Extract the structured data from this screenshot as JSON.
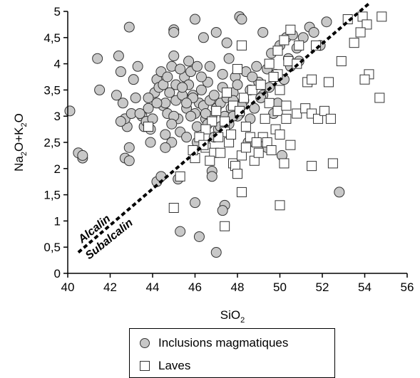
{
  "chart_data": {
    "type": "scatter",
    "title": "",
    "xlabel": "SiO",
    "xlabel_sub": "2",
    "ylabel_parts": [
      "Na",
      "2",
      "O+K",
      "2",
      "O"
    ],
    "xlim": [
      40,
      56
    ],
    "ylim": [
      0,
      5
    ],
    "x_ticks": [
      "40",
      "42",
      "44",
      "46",
      "48",
      "50",
      "52",
      "54",
      "56"
    ],
    "y_ticks": [
      "0",
      "0,5",
      "1",
      "1,5",
      "2",
      "2,5",
      "3",
      "3,5",
      "4",
      "4,5",
      "5"
    ],
    "divider_line": {
      "style": "dashed",
      "points": [
        [
          40.5,
          0.4
        ],
        [
          54.2,
          5.15
        ]
      ]
    },
    "annotations": {
      "upper": "Alcalin",
      "lower": "Subalcalin"
    },
    "legend_position": "bottom",
    "series": [
      {
        "name": "Inclusions magmatiques",
        "marker": "circle",
        "color": "#c8c8c8",
        "points": [
          [
            40.1,
            3.1
          ],
          [
            40.7,
            2.2
          ],
          [
            40.5,
            2.3
          ],
          [
            40.7,
            2.25
          ],
          [
            41.4,
            4.1
          ],
          [
            41.5,
            3.5
          ],
          [
            42.4,
            4.15
          ],
          [
            42.5,
            3.85
          ],
          [
            42.3,
            3.4
          ],
          [
            42.6,
            3.25
          ],
          [
            42.8,
            2.8
          ],
          [
            42.7,
            2.95
          ],
          [
            42.5,
            2.9
          ],
          [
            42.9,
            2.4
          ],
          [
            42.7,
            2.2
          ],
          [
            42.9,
            2.15
          ],
          [
            43.0,
            3.05
          ],
          [
            43.2,
            3.35
          ],
          [
            43.1,
            3.7
          ],
          [
            43.3,
            3.95
          ],
          [
            43.5,
            3.0
          ],
          [
            43.6,
            2.8
          ],
          [
            43.7,
            2.9
          ],
          [
            43.8,
            3.15
          ],
          [
            43.9,
            2.75
          ],
          [
            44.0,
            2.95
          ],
          [
            44.1,
            3.45
          ],
          [
            44.2,
            3.7
          ],
          [
            44.3,
            3.55
          ],
          [
            44.4,
            3.85
          ],
          [
            44.5,
            3.2
          ],
          [
            44.6,
            2.65
          ],
          [
            44.7,
            3.05
          ],
          [
            44.8,
            3.45
          ],
          [
            44.9,
            3.95
          ],
          [
            45.0,
            4.15
          ],
          [
            45.1,
            3.6
          ],
          [
            45.1,
            3.3
          ],
          [
            45.2,
            2.95
          ],
          [
            45.3,
            2.7
          ],
          [
            45.4,
            3.4
          ],
          [
            45.5,
            3.75
          ],
          [
            45.6,
            3.15
          ],
          [
            45.7,
            3.6
          ],
          [
            45.8,
            3.85
          ],
          [
            45.9,
            3.4
          ],
          [
            46.0,
            3.05
          ],
          [
            46.1,
            2.8
          ],
          [
            46.2,
            3.25
          ],
          [
            46.3,
            3.5
          ],
          [
            46.4,
            3.2
          ],
          [
            46.5,
            2.95
          ],
          [
            46.6,
            3.65
          ],
          [
            46.7,
            3.3
          ],
          [
            46.8,
            3.0
          ],
          [
            46.9,
            3.4
          ],
          [
            47.0,
            3.15
          ],
          [
            47.1,
            2.75
          ],
          [
            47.2,
            3.25
          ],
          [
            47.3,
            3.55
          ],
          [
            47.4,
            3.0
          ],
          [
            47.5,
            3.35
          ],
          [
            47.6,
            2.85
          ],
          [
            47.7,
            3.15
          ],
          [
            47.8,
            3.45
          ],
          [
            47.9,
            3.75
          ],
          [
            48.0,
            3.6
          ],
          [
            48.1,
            3.05
          ],
          [
            48.3,
            3.3
          ],
          [
            48.4,
            3.85
          ],
          [
            48.6,
            3.5
          ],
          [
            48.8,
            3.15
          ],
          [
            49.0,
            3.65
          ],
          [
            49.2,
            3.4
          ],
          [
            49.4,
            3.9
          ],
          [
            49.6,
            4.2
          ],
          [
            49.8,
            3.8
          ],
          [
            50.0,
            4.35
          ],
          [
            50.3,
            4.5
          ],
          [
            50.6,
            4.55
          ],
          [
            50.8,
            4.3
          ],
          [
            51.1,
            4.5
          ],
          [
            51.4,
            4.7
          ],
          [
            51.6,
            4.6
          ],
          [
            52.2,
            4.8
          ],
          [
            42.9,
            4.7
          ],
          [
            45.0,
            4.65
          ],
          [
            45.0,
            4.6
          ],
          [
            46.0,
            4.85
          ],
          [
            48.1,
            4.9
          ],
          [
            48.2,
            4.85
          ],
          [
            46.4,
            4.5
          ],
          [
            47.0,
            4.6
          ],
          [
            49.2,
            4.6
          ],
          [
            47.5,
            4.4
          ],
          [
            44.6,
            3.25
          ],
          [
            45.8,
            3.0
          ],
          [
            46.9,
            2.6
          ],
          [
            48.5,
            2.5
          ],
          [
            45.2,
            1.8
          ],
          [
            44.2,
            1.75
          ],
          [
            44.4,
            1.85
          ],
          [
            46.8,
            1.95
          ],
          [
            46.8,
            1.85
          ],
          [
            46.0,
            1.35
          ],
          [
            47.4,
            1.3
          ],
          [
            47.3,
            1.2
          ],
          [
            45.3,
            0.8
          ],
          [
            46.2,
            0.7
          ],
          [
            47.0,
            0.4
          ],
          [
            52.8,
            1.55
          ],
          [
            50.1,
            2.25
          ],
          [
            49.4,
            2.4
          ],
          [
            46.1,
            2.5
          ],
          [
            45.6,
            2.6
          ],
          [
            44.9,
            2.5
          ],
          [
            44.6,
            2.4
          ],
          [
            43.9,
            2.5
          ],
          [
            44.5,
            3.6
          ],
          [
            45.3,
            3.9
          ],
          [
            45.9,
            3.35
          ],
          [
            46.5,
            3.05
          ],
          [
            47.6,
            4.1
          ],
          [
            48.9,
            3.95
          ],
          [
            49.5,
            3.55
          ],
          [
            50.2,
            3.7
          ],
          [
            50.9,
            4.05
          ],
          [
            44.7,
            3.75
          ],
          [
            45.6,
            3.25
          ],
          [
            46.3,
            3.75
          ],
          [
            47.2,
            2.8
          ],
          [
            48.0,
            3.0
          ],
          [
            48.7,
            3.75
          ],
          [
            49.9,
            3.25
          ],
          [
            43.4,
            3.05
          ],
          [
            44.2,
            3.25
          ],
          [
            45.0,
            3.0
          ],
          [
            46.6,
            2.85
          ],
          [
            47.8,
            3.3
          ],
          [
            49.1,
            3.35
          ],
          [
            50.5,
            3.95
          ],
          [
            51.9,
            4.35
          ],
          [
            43.8,
            3.35
          ],
          [
            45.4,
            3.55
          ],
          [
            46.1,
            3.95
          ],
          [
            47.3,
            3.8
          ],
          [
            48.2,
            3.2
          ],
          [
            49.7,
            3.05
          ],
          [
            44.9,
            2.85
          ],
          [
            46.7,
            3.95
          ],
          [
            48.6,
            2.95
          ],
          [
            50.4,
            4.1
          ],
          [
            45.7,
            4.05
          ],
          [
            47.8,
            3.0
          ]
        ]
      },
      {
        "name": "Laves",
        "marker": "square",
        "color": "#ffffff",
        "points": [
          [
            43.8,
            2.8
          ],
          [
            45.3,
            1.85
          ],
          [
            45.0,
            1.25
          ],
          [
            46.5,
            2.4
          ],
          [
            46.9,
            2.3
          ],
          [
            46.0,
            2.2
          ],
          [
            47.4,
            2.7
          ],
          [
            47.6,
            2.5
          ],
          [
            47.8,
            2.1
          ],
          [
            47.9,
            2.05
          ],
          [
            48.0,
            1.9
          ],
          [
            48.2,
            2.25
          ],
          [
            48.4,
            2.4
          ],
          [
            48.6,
            2.6
          ],
          [
            48.8,
            2.15
          ],
          [
            49.0,
            2.3
          ],
          [
            49.2,
            2.6
          ],
          [
            49.4,
            2.5
          ],
          [
            49.6,
            2.35
          ],
          [
            49.8,
            2.75
          ],
          [
            50.0,
            2.65
          ],
          [
            50.2,
            2.1
          ],
          [
            50.5,
            2.45
          ],
          [
            50.8,
            3.05
          ],
          [
            51.2,
            3.15
          ],
          [
            51.5,
            3.05
          ],
          [
            51.8,
            2.95
          ],
          [
            52.1,
            3.1
          ],
          [
            52.4,
            2.95
          ],
          [
            52.5,
            2.1
          ],
          [
            51.5,
            2.05
          ],
          [
            50.0,
            1.3
          ],
          [
            47.4,
            0.9
          ],
          [
            48.2,
            1.55
          ],
          [
            52.3,
            3.65
          ],
          [
            51.3,
            3.65
          ],
          [
            51.5,
            3.7
          ],
          [
            52.9,
            4.05
          ],
          [
            53.2,
            4.85
          ],
          [
            53.9,
            4.9
          ],
          [
            54.1,
            4.75
          ],
          [
            53.8,
            4.6
          ],
          [
            54.8,
            4.9
          ],
          [
            53.5,
            4.4
          ],
          [
            51.7,
            4.35
          ],
          [
            54.2,
            3.8
          ],
          [
            54.0,
            3.7
          ],
          [
            54.7,
            3.35
          ],
          [
            50.9,
            4.35
          ],
          [
            50.5,
            4.65
          ],
          [
            50.2,
            4.45
          ],
          [
            49.9,
            4.25
          ],
          [
            49.5,
            4.0
          ],
          [
            49.9,
            3.8
          ],
          [
            48.2,
            4.35
          ],
          [
            48.0,
            3.9
          ],
          [
            47.5,
            3.45
          ],
          [
            47.0,
            3.1
          ],
          [
            46.8,
            2.9
          ],
          [
            46.5,
            2.75
          ],
          [
            46.2,
            2.6
          ],
          [
            46.7,
            2.15
          ],
          [
            47.1,
            2.6
          ],
          [
            47.4,
            2.9
          ],
          [
            47.8,
            3.2
          ],
          [
            48.3,
            3.35
          ],
          [
            48.7,
            3.5
          ],
          [
            49.1,
            3.6
          ],
          [
            49.5,
            3.25
          ],
          [
            49.9,
            3.1
          ],
          [
            50.3,
            2.95
          ],
          [
            50.0,
            3.5
          ],
          [
            49.7,
            3.75
          ],
          [
            50.4,
            4.05
          ],
          [
            50.8,
            4.0
          ],
          [
            48.4,
            2.8
          ],
          [
            48.9,
            2.5
          ],
          [
            49.3,
            2.95
          ],
          [
            50.3,
            3.2
          ],
          [
            47.2,
            2.3
          ],
          [
            46.4,
            2.45
          ],
          [
            47.7,
            2.65
          ],
          [
            45.9,
            2.35
          ],
          [
            48.1,
            3.1
          ]
        ]
      }
    ]
  },
  "legend": {
    "items": [
      "Inclusions magmatiques",
      "Laves"
    ]
  }
}
